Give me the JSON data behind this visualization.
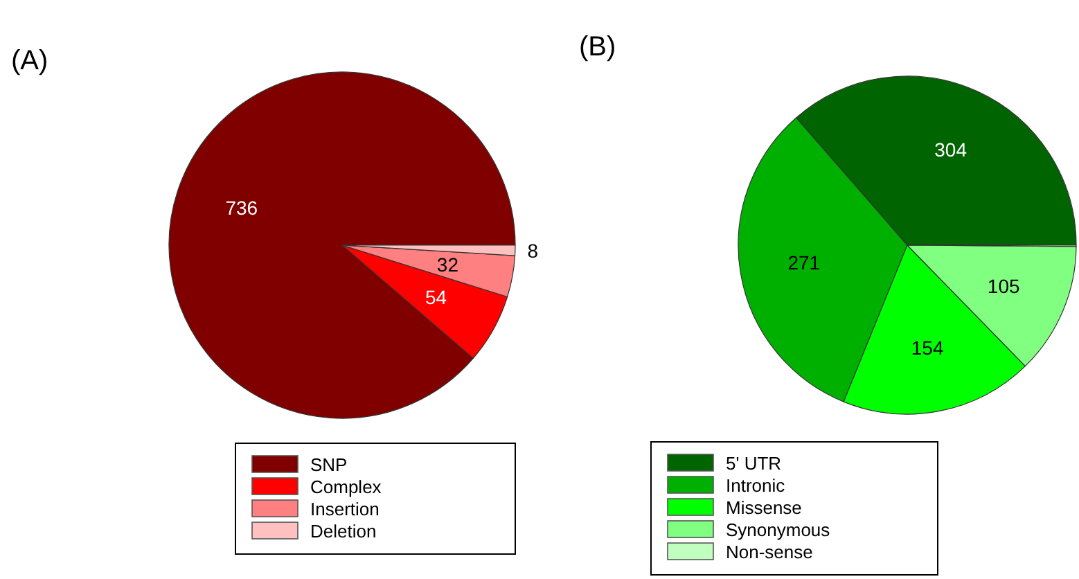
{
  "chart_data": [
    {
      "type": "pie",
      "title": "(A)",
      "categories": [
        "SNP",
        "Complex",
        "Insertion",
        "Deletion"
      ],
      "values": [
        736,
        54,
        32,
        8
      ],
      "colors": [
        "#800000",
        "#ff0000",
        "#ff8080",
        "#ffc0c0"
      ],
      "data_labels": true,
      "legend": "bottom"
    },
    {
      "type": "pie",
      "title": "(B)",
      "categories": [
        "5' UTR",
        "Intronic",
        "Missense",
        "Synonymous",
        "Non-sense"
      ],
      "values": [
        304,
        271,
        154,
        105,
        1
      ],
      "colors": [
        "#006400",
        "#00b000",
        "#00ff00",
        "#80ff80",
        "#c0ffc0"
      ],
      "value_labels": [
        "304",
        "271",
        "154",
        "105",
        null
      ],
      "legend": "bottom"
    }
  ]
}
